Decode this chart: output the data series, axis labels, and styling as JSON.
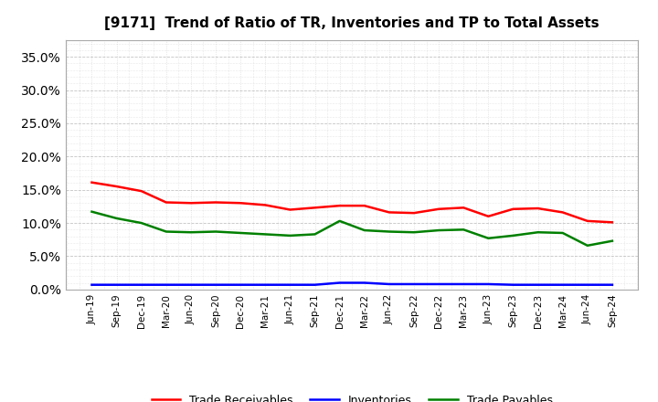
{
  "title": "[9171]  Trend of Ratio of TR, Inventories and TP to Total Assets",
  "x_labels": [
    "Jun-19",
    "Sep-19",
    "Dec-19",
    "Mar-20",
    "Jun-20",
    "Sep-20",
    "Dec-20",
    "Mar-21",
    "Jun-21",
    "Sep-21",
    "Dec-21",
    "Mar-22",
    "Jun-22",
    "Sep-22",
    "Dec-22",
    "Mar-23",
    "Jun-23",
    "Sep-23",
    "Dec-23",
    "Mar-24",
    "Jun-24",
    "Sep-24"
  ],
  "trade_receivables": [
    0.161,
    0.155,
    0.148,
    0.131,
    0.13,
    0.131,
    0.13,
    0.127,
    0.12,
    0.123,
    0.126,
    0.126,
    0.116,
    0.115,
    0.121,
    0.123,
    0.11,
    0.121,
    0.122,
    0.116,
    0.103,
    0.101
  ],
  "inventories": [
    0.007,
    0.007,
    0.007,
    0.007,
    0.007,
    0.007,
    0.007,
    0.007,
    0.007,
    0.007,
    0.01,
    0.01,
    0.008,
    0.008,
    0.008,
    0.008,
    0.008,
    0.007,
    0.007,
    0.007,
    0.007,
    0.007
  ],
  "trade_payables": [
    0.117,
    0.107,
    0.1,
    0.087,
    0.086,
    0.087,
    0.085,
    0.083,
    0.081,
    0.083,
    0.103,
    0.089,
    0.087,
    0.086,
    0.089,
    0.09,
    0.077,
    0.081,
    0.086,
    0.085,
    0.066,
    0.073
  ],
  "ylim": [
    0.0,
    0.375
  ],
  "yticks": [
    0.0,
    0.05,
    0.1,
    0.15,
    0.2,
    0.25,
    0.3,
    0.35
  ],
  "color_tr": "#FF0000",
  "color_inv": "#0000FF",
  "color_tp": "#008000",
  "background_color": "#FFFFFF",
  "plot_bg_color": "#FFFFFF",
  "grid_color": "#AAAAAA",
  "legend_labels": [
    "Trade Receivables",
    "Inventories",
    "Trade Payables"
  ]
}
